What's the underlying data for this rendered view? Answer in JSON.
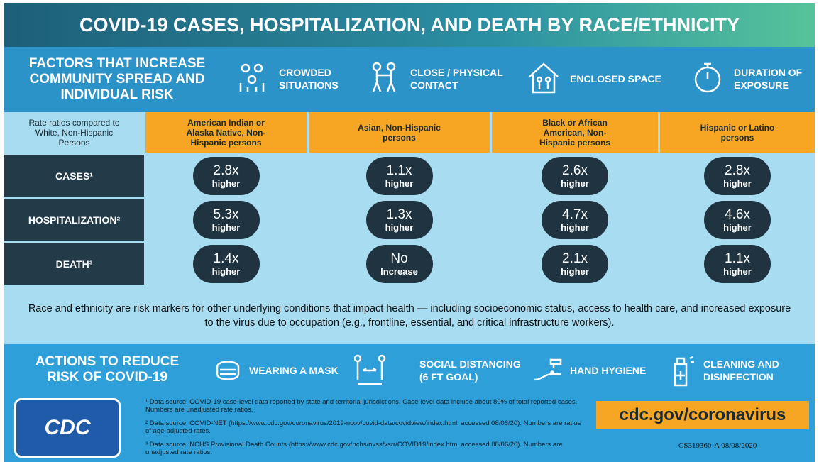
{
  "title": "COVID-19 CASES, HOSPITALIZATION, AND DEATH BY RACE/ETHNICITY",
  "factors": {
    "heading": "FACTORS THAT INCREASE COMMUNITY SPREAD AND INDIVIDUAL RISK",
    "items": [
      "CROWDED SITUATIONS",
      "CLOSE / PHYSICAL CONTACT",
      "ENCLOSED SPACE",
      "DURATION OF EXPOSURE"
    ]
  },
  "table": {
    "corner": "Rate ratios compared to White, Non-Hispanic Persons",
    "columns": [
      "American Indian or Alaska Native, Non-Hispanic persons",
      "Asian, Non-Hispanic persons",
      "Black or African American, Non-Hispanic persons",
      "Hispanic or Latino persons"
    ],
    "rows": [
      {
        "label": "CASES¹",
        "cells": [
          [
            "2.8x",
            "higher"
          ],
          [
            "1.1x",
            "higher"
          ],
          [
            "2.6x",
            "higher"
          ],
          [
            "2.8x",
            "higher"
          ]
        ]
      },
      {
        "label": "HOSPITALIZATION²",
        "cells": [
          [
            "5.3x",
            "higher"
          ],
          [
            "1.3x",
            "higher"
          ],
          [
            "4.7x",
            "higher"
          ],
          [
            "4.6x",
            "higher"
          ]
        ]
      },
      {
        "label": "DEATH³",
        "cells": [
          [
            "1.4x",
            "higher"
          ],
          [
            "No",
            "Increase"
          ],
          [
            "2.1x",
            "higher"
          ],
          [
            "1.1x",
            "higher"
          ]
        ]
      }
    ]
  },
  "note": "Race and ethnicity are risk markers for other underlying conditions that impact health — including socioeconomic status, access to health care, and increased exposure to the virus due to occupation (e.g., frontline, essential, and critical infrastructure workers).",
  "actions": {
    "heading": "ACTIONS TO REDUCE RISK OF COVID-19",
    "items": [
      "WEARING A MASK",
      "SOCIAL DISTANCING (6 FT GOAL)",
      "HAND HYGIENE",
      "CLEANING AND DISINFECTION"
    ]
  },
  "footnotes": [
    "¹ Data source: COVID-19 case-level data reported by state and territorial jurisdictions. Case-level data include about 80% of total reported cases. Numbers are unadjusted rate ratios.",
    "² Data source: COVID-NET (https://www.cdc.gov/coronavirus/2019-ncov/covid-data/covidview/index.html, accessed 08/06/20). Numbers are ratios of age-adjusted rates.",
    "³ Data source: NCHS Provisional Death Counts (https://www.cdc.gov/nchs/nvss/vsrr/COVID19/index.htm, accessed 08/06/20). Numbers are unadjusted rate ratios."
  ],
  "logo": "CDC",
  "website": "cdc.gov/coronavirus",
  "code": "CS319360-A 08/08/2020"
}
